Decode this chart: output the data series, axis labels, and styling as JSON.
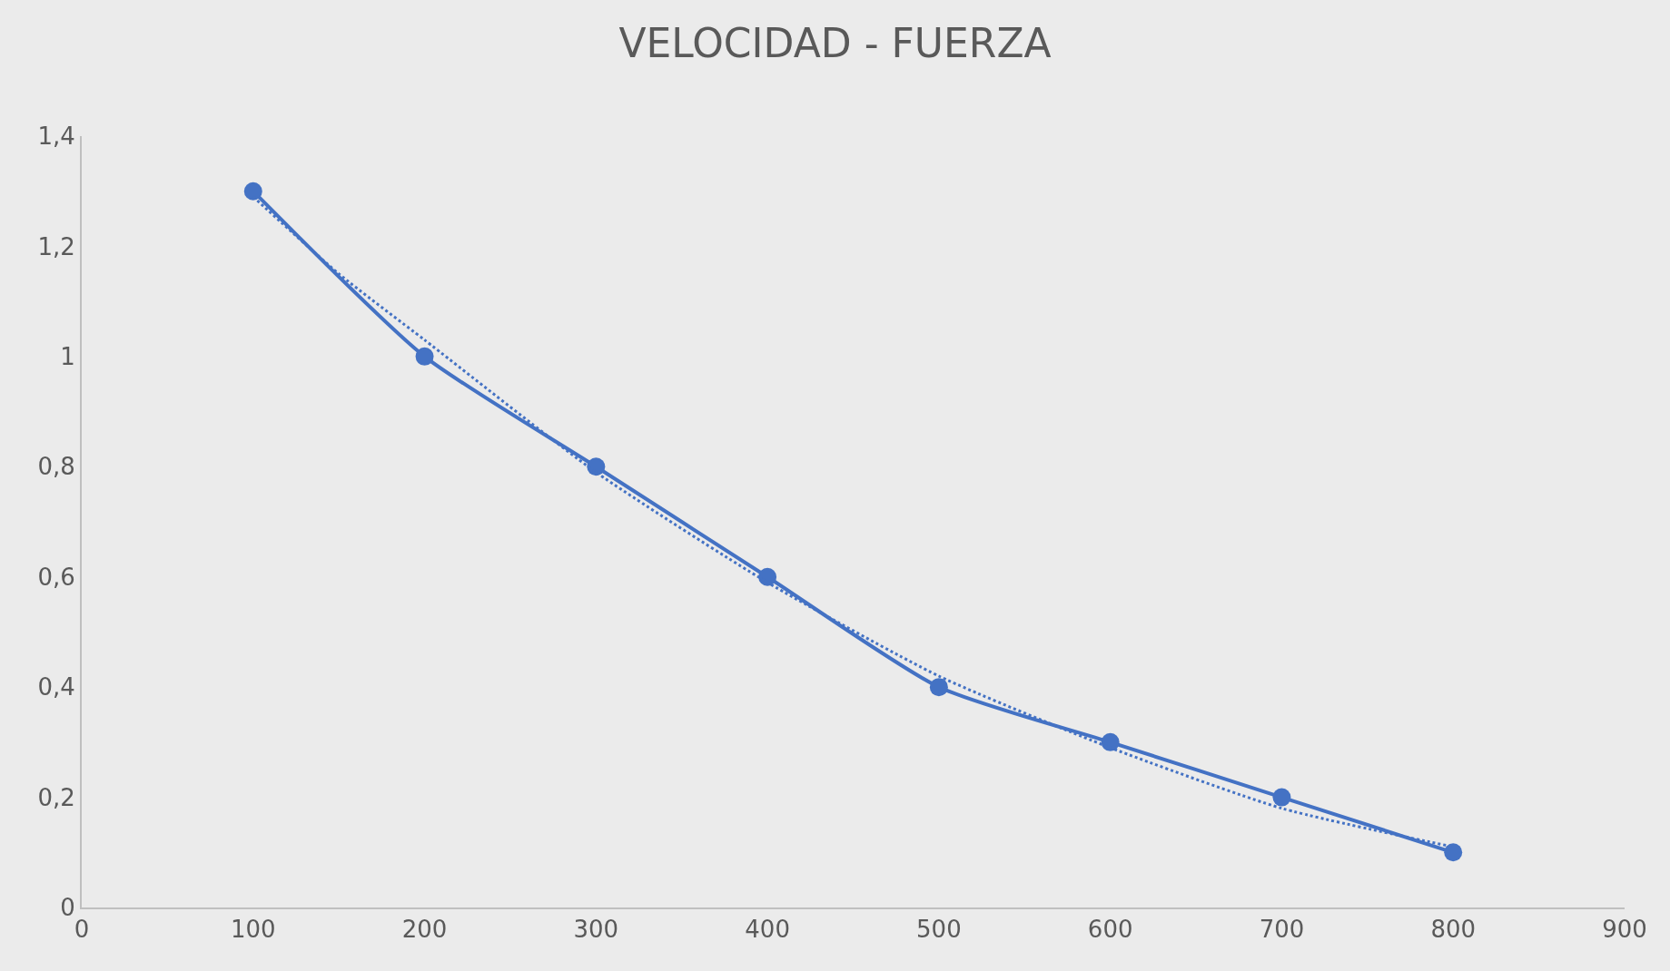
{
  "chart_data": {
    "type": "line",
    "title": "VELOCIDAD - FUERZA",
    "x": [
      100,
      200,
      300,
      400,
      500,
      600,
      700,
      800
    ],
    "series": [
      {
        "color": "#4472c4",
        "marker": "circle",
        "line_style": "solid",
        "values": [
          1.3,
          1.0,
          0.8,
          0.6,
          0.4,
          0.3,
          0.2,
          0.1
        ]
      },
      {
        "type": "line",
        "color": "#4472c4",
        "marker": "none",
        "line_style": "dotted",
        "x": [
          100,
          150,
          200,
          300,
          400,
          500,
          600,
          700,
          800
        ],
        "values": [
          1.29,
          1.15,
          1.03,
          0.79,
          0.59,
          0.42,
          0.29,
          0.18,
          0.11
        ]
      }
    ],
    "xlim": [
      0,
      900
    ],
    "xticks": [
      0,
      100,
      200,
      300,
      400,
      500,
      600,
      700,
      800,
      900
    ],
    "ylim": [
      0,
      1.4
    ],
    "yticks": [
      0,
      {
        "value": 0.2,
        "label": "0,2"
      },
      {
        "value": 0.4,
        "label": "0,4"
      },
      {
        "value": 0.6,
        "label": "0,6"
      },
      {
        "value": 0.8,
        "label": "0,8"
      },
      1,
      {
        "value": 1.2,
        "label": "1,2"
      },
      {
        "value": 1.4,
        "label": "1,4"
      }
    ],
    "grid": false
  }
}
